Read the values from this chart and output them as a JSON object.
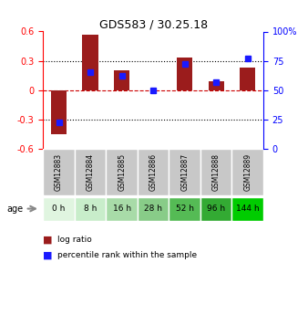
{
  "title": "GDS583 / 30.25.18",
  "samples": [
    "GSM12883",
    "GSM12884",
    "GSM12885",
    "GSM12886",
    "GSM12887",
    "GSM12888",
    "GSM12889"
  ],
  "ages": [
    "0 h",
    "8 h",
    "16 h",
    "28 h",
    "52 h",
    "96 h",
    "144 h"
  ],
  "log_ratios": [
    -0.45,
    0.57,
    0.2,
    0.0,
    0.33,
    0.09,
    0.23
  ],
  "percentile_ranks": [
    22,
    65,
    62,
    50,
    72,
    57,
    77
  ],
  "bar_color": "#9b1c1c",
  "dot_color": "#1a1aff",
  "ylim_left": [
    -0.6,
    0.6
  ],
  "ylim_right": [
    0,
    100
  ],
  "yticks_left": [
    -0.6,
    -0.3,
    0,
    0.3,
    0.6
  ],
  "yticks_right": [
    0,
    25,
    50,
    75,
    100
  ],
  "sample_box_color": "#c8c8c8",
  "background_color": "#ffffff",
  "age_colors": [
    "#e0f5e0",
    "#c8edca",
    "#a8dba8",
    "#88cc88",
    "#55bb55",
    "#33aa33",
    "#00cc00"
  ],
  "legend_label_ratio": "log ratio",
  "legend_label_pct": "percentile rank within the sample"
}
